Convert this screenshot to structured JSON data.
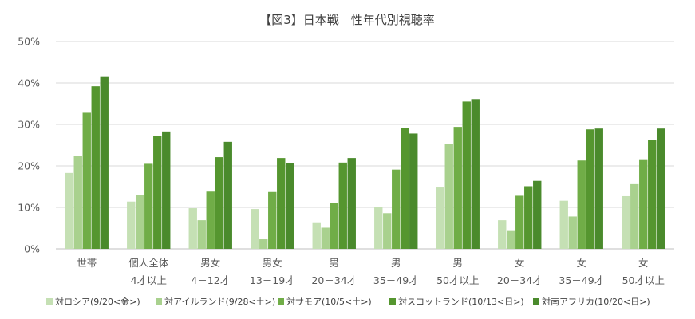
{
  "colors": [
    "#c5e0b4",
    "#a9d18e",
    "#70ad47",
    "#55962f",
    "#4a8a2c"
  ],
  "gridline_color": "#d9d9d9",
  "chart_data": {
    "type": "bar",
    "title": "【図3】日本戦　性年代別視聴率",
    "xlabel": "",
    "ylabel": "",
    "ylim": [
      0,
      50
    ],
    "yticks": [
      0,
      10,
      20,
      30,
      40,
      50
    ],
    "ytick_labels": [
      "0%",
      "10%",
      "20%",
      "30%",
      "40%",
      "50%"
    ],
    "grid": true,
    "legend_position": "bottom",
    "categories": [
      [
        "世帯"
      ],
      [
        "個人全体",
        "4才以上"
      ],
      [
        "男女",
        "4－12才"
      ],
      [
        "男女",
        "13－19才"
      ],
      [
        "男",
        "20－34才"
      ],
      [
        "男",
        "35－49才"
      ],
      [
        "男",
        "50才以上"
      ],
      [
        "女",
        "20－34才"
      ],
      [
        "女",
        "35－49才"
      ],
      [
        "女",
        "50才以上"
      ]
    ],
    "series": [
      {
        "name": "対ロシア(9/20<金>)",
        "values": [
          18.3,
          11.4,
          9.8,
          9.6,
          6.4,
          10.0,
          14.8,
          6.9,
          11.6,
          12.7
        ]
      },
      {
        "name": "対アイルランド(9/28<土>)",
        "values": [
          22.5,
          13.0,
          6.9,
          2.3,
          5.1,
          8.6,
          25.3,
          4.3,
          7.8,
          15.6
        ]
      },
      {
        "name": "対サモア(10/5<土>)",
        "values": [
          32.8,
          20.5,
          13.8,
          13.7,
          11.1,
          19.1,
          29.4,
          12.8,
          21.3,
          21.6
        ]
      },
      {
        "name": "対スコットランド(10/13<日>)",
        "values": [
          39.2,
          27.2,
          22.1,
          21.9,
          20.8,
          29.2,
          35.5,
          15.1,
          28.8,
          26.2
        ]
      },
      {
        "name": "対南アフリカ(10/20<日>)",
        "values": [
          41.6,
          28.3,
          25.8,
          20.6,
          21.9,
          27.8,
          36.1,
          16.4,
          29.0,
          29.0
        ]
      }
    ]
  }
}
